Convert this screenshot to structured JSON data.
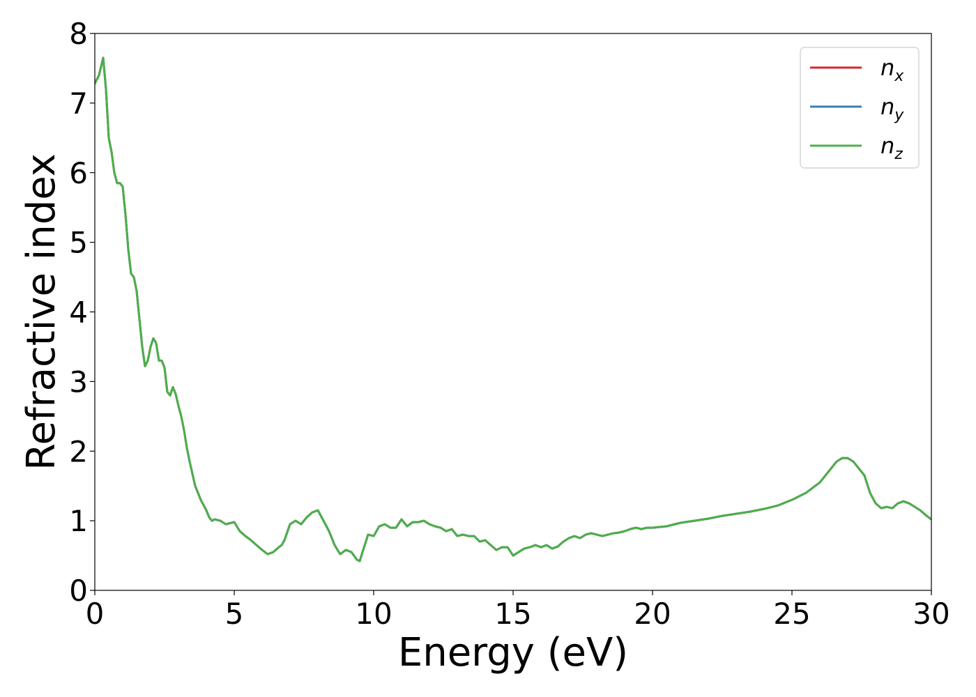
{
  "chart_data": {
    "type": "line",
    "title": "",
    "xlabel": "Energy (eV)",
    "ylabel": "Refractive index",
    "xlim": [
      0,
      30
    ],
    "ylim": [
      0,
      8
    ],
    "xticks": [
      0,
      5,
      10,
      15,
      20,
      25,
      30
    ],
    "yticks": [
      0,
      1,
      2,
      3,
      4,
      5,
      6,
      7,
      8
    ],
    "grid": false,
    "legend_position": "top-right",
    "x": [
      0,
      0.15,
      0.3,
      0.4,
      0.5,
      0.6,
      0.7,
      0.8,
      0.9,
      1.0,
      1.1,
      1.2,
      1.3,
      1.4,
      1.5,
      1.6,
      1.7,
      1.8,
      1.9,
      2.0,
      2.1,
      2.2,
      2.3,
      2.4,
      2.5,
      2.6,
      2.7,
      2.8,
      2.9,
      3.0,
      3.1,
      3.2,
      3.3,
      3.4,
      3.6,
      3.8,
      4.0,
      4.1,
      4.2,
      4.3,
      4.5,
      4.7,
      5.0,
      5.2,
      5.4,
      5.6,
      5.8,
      6.0,
      6.2,
      6.4,
      6.6,
      6.7,
      6.8,
      7.0,
      7.2,
      7.4,
      7.6,
      7.8,
      8.0,
      8.2,
      8.4,
      8.6,
      8.8,
      9.0,
      9.2,
      9.4,
      9.5,
      9.6,
      9.8,
      10.0,
      10.2,
      10.4,
      10.6,
      10.8,
      11.0,
      11.2,
      11.4,
      11.6,
      11.8,
      12.0,
      12.2,
      12.4,
      12.6,
      12.8,
      13.0,
      13.2,
      13.4,
      13.6,
      13.8,
      14.0,
      14.2,
      14.4,
      14.6,
      14.8,
      15.0,
      15.2,
      15.4,
      15.6,
      15.8,
      16.0,
      16.2,
      16.4,
      16.6,
      16.8,
      17.0,
      17.2,
      17.4,
      17.6,
      17.8,
      18.0,
      18.2,
      18.4,
      18.6,
      18.8,
      19.0,
      19.2,
      19.4,
      19.6,
      19.8,
      20.0,
      20.5,
      21.0,
      21.5,
      22.0,
      22.5,
      23.0,
      23.5,
      24.0,
      24.5,
      25.0,
      25.5,
      26.0,
      26.3,
      26.6,
      26.8,
      27.0,
      27.2,
      27.4,
      27.6,
      27.8,
      28.0,
      28.2,
      28.4,
      28.6,
      28.8,
      29.0,
      29.2,
      29.4,
      29.6,
      29.8,
      30.0
    ],
    "series": [
      {
        "name": "n_x",
        "color": "#d62728",
        "values": [
          7.28,
          7.4,
          7.65,
          7.2,
          6.5,
          6.3,
          6.0,
          5.85,
          5.85,
          5.8,
          5.4,
          4.9,
          4.55,
          4.5,
          4.3,
          3.9,
          3.5,
          3.22,
          3.3,
          3.5,
          3.62,
          3.55,
          3.3,
          3.3,
          3.2,
          2.85,
          2.8,
          2.92,
          2.82,
          2.65,
          2.5,
          2.3,
          2.05,
          1.85,
          1.5,
          1.3,
          1.15,
          1.05,
          1.0,
          1.02,
          1.0,
          0.95,
          0.98,
          0.85,
          0.78,
          0.72,
          0.65,
          0.58,
          0.52,
          0.55,
          0.62,
          0.65,
          0.72,
          0.95,
          1.0,
          0.95,
          1.05,
          1.12,
          1.15,
          1.0,
          0.85,
          0.65,
          0.52,
          0.58,
          0.55,
          0.44,
          0.42,
          0.55,
          0.8,
          0.78,
          0.92,
          0.95,
          0.9,
          0.9,
          1.02,
          0.92,
          0.98,
          0.98,
          1.0,
          0.95,
          0.92,
          0.9,
          0.85,
          0.88,
          0.78,
          0.8,
          0.78,
          0.78,
          0.7,
          0.72,
          0.65,
          0.58,
          0.62,
          0.62,
          0.5,
          0.55,
          0.6,
          0.62,
          0.65,
          0.62,
          0.65,
          0.6,
          0.63,
          0.7,
          0.75,
          0.78,
          0.75,
          0.8,
          0.82,
          0.8,
          0.78,
          0.8,
          0.82,
          0.83,
          0.85,
          0.88,
          0.9,
          0.88,
          0.9,
          0.9,
          0.92,
          0.97,
          1.0,
          1.03,
          1.07,
          1.1,
          1.13,
          1.17,
          1.22,
          1.3,
          1.4,
          1.55,
          1.7,
          1.85,
          1.9,
          1.9,
          1.85,
          1.75,
          1.65,
          1.4,
          1.25,
          1.18,
          1.2,
          1.18,
          1.25,
          1.28,
          1.25,
          1.2,
          1.15,
          1.08,
          1.02
        ]
      },
      {
        "name": "n_y",
        "color": "#377eb8",
        "values": [
          7.28,
          7.4,
          7.65,
          7.2,
          6.5,
          6.3,
          6.0,
          5.85,
          5.85,
          5.8,
          5.4,
          4.9,
          4.55,
          4.5,
          4.3,
          3.9,
          3.5,
          3.22,
          3.3,
          3.5,
          3.62,
          3.55,
          3.3,
          3.3,
          3.2,
          2.85,
          2.8,
          2.92,
          2.82,
          2.65,
          2.5,
          2.3,
          2.05,
          1.85,
          1.5,
          1.3,
          1.15,
          1.05,
          1.0,
          1.02,
          1.0,
          0.95,
          0.98,
          0.85,
          0.78,
          0.72,
          0.65,
          0.58,
          0.52,
          0.55,
          0.62,
          0.65,
          0.72,
          0.95,
          1.0,
          0.95,
          1.05,
          1.12,
          1.15,
          1.0,
          0.85,
          0.65,
          0.52,
          0.58,
          0.55,
          0.44,
          0.42,
          0.55,
          0.8,
          0.78,
          0.92,
          0.95,
          0.9,
          0.9,
          1.02,
          0.92,
          0.98,
          0.98,
          1.0,
          0.95,
          0.92,
          0.9,
          0.85,
          0.88,
          0.78,
          0.8,
          0.78,
          0.78,
          0.7,
          0.72,
          0.65,
          0.58,
          0.62,
          0.62,
          0.5,
          0.55,
          0.6,
          0.62,
          0.65,
          0.62,
          0.65,
          0.6,
          0.63,
          0.7,
          0.75,
          0.78,
          0.75,
          0.8,
          0.82,
          0.8,
          0.78,
          0.8,
          0.82,
          0.83,
          0.85,
          0.88,
          0.9,
          0.88,
          0.9,
          0.9,
          0.92,
          0.97,
          1.0,
          1.03,
          1.07,
          1.1,
          1.13,
          1.17,
          1.22,
          1.3,
          1.4,
          1.55,
          1.7,
          1.85,
          1.9,
          1.9,
          1.85,
          1.75,
          1.65,
          1.4,
          1.25,
          1.18,
          1.2,
          1.18,
          1.25,
          1.28,
          1.25,
          1.2,
          1.15,
          1.08,
          1.02
        ]
      },
      {
        "name": "n_z",
        "color": "#4daf4a",
        "values": [
          7.28,
          7.4,
          7.65,
          7.2,
          6.5,
          6.3,
          6.0,
          5.85,
          5.85,
          5.8,
          5.4,
          4.9,
          4.55,
          4.5,
          4.3,
          3.9,
          3.5,
          3.22,
          3.3,
          3.5,
          3.62,
          3.55,
          3.3,
          3.3,
          3.2,
          2.85,
          2.8,
          2.92,
          2.82,
          2.65,
          2.5,
          2.3,
          2.05,
          1.85,
          1.5,
          1.3,
          1.15,
          1.05,
          1.0,
          1.02,
          1.0,
          0.95,
          0.98,
          0.85,
          0.78,
          0.72,
          0.65,
          0.58,
          0.52,
          0.55,
          0.62,
          0.65,
          0.72,
          0.95,
          1.0,
          0.95,
          1.05,
          1.12,
          1.15,
          1.0,
          0.85,
          0.65,
          0.52,
          0.58,
          0.55,
          0.44,
          0.42,
          0.55,
          0.8,
          0.78,
          0.92,
          0.95,
          0.9,
          0.9,
          1.02,
          0.92,
          0.98,
          0.98,
          1.0,
          0.95,
          0.92,
          0.9,
          0.85,
          0.88,
          0.78,
          0.8,
          0.78,
          0.78,
          0.7,
          0.72,
          0.65,
          0.58,
          0.62,
          0.62,
          0.5,
          0.55,
          0.6,
          0.62,
          0.65,
          0.62,
          0.65,
          0.6,
          0.63,
          0.7,
          0.75,
          0.78,
          0.75,
          0.8,
          0.82,
          0.8,
          0.78,
          0.8,
          0.82,
          0.83,
          0.85,
          0.88,
          0.9,
          0.88,
          0.9,
          0.9,
          0.92,
          0.97,
          1.0,
          1.03,
          1.07,
          1.1,
          1.13,
          1.17,
          1.22,
          1.3,
          1.4,
          1.55,
          1.7,
          1.85,
          1.9,
          1.9,
          1.85,
          1.75,
          1.65,
          1.4,
          1.25,
          1.18,
          1.2,
          1.18,
          1.25,
          1.28,
          1.25,
          1.2,
          1.15,
          1.08,
          1.02
        ]
      }
    ],
    "legend": [
      {
        "base": "n",
        "sub": "x",
        "color": "#d62728"
      },
      {
        "base": "n",
        "sub": "y",
        "color": "#377eb8"
      },
      {
        "base": "n",
        "sub": "z",
        "color": "#4daf4a"
      }
    ]
  }
}
